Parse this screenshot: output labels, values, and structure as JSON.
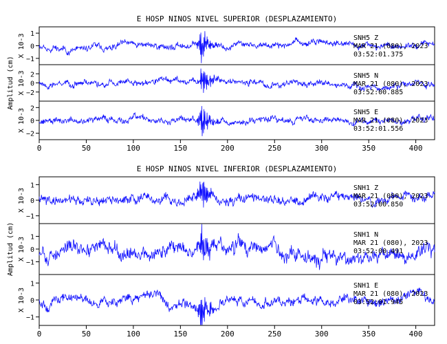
{
  "chart_data": [
    {
      "type": "line",
      "title": "E HOSP NINOS NIVEL SUPERIOR (DESPLAZAMIENTO)",
      "ylabel": "Amplitud (cm)",
      "yunit_label": "X 10-3",
      "xlim": [
        0,
        420
      ],
      "xticks": [
        0,
        50,
        100,
        150,
        200,
        250,
        300,
        350,
        400
      ],
      "line_color": "#1010ff",
      "traces": [
        {
          "station": "SNH5",
          "component": "Z",
          "date": "MAR 21 (080), 2023",
          "time": "03:52:01.375",
          "ylim": [
            -1.5,
            1.5
          ],
          "yticks": [
            -1,
            0,
            1
          ],
          "event_x": 172,
          "event_amp": 1.6,
          "noise_amp": 0.45,
          "seed": 11
        },
        {
          "station": "SNH5",
          "component": "N",
          "date": "MAR 21 (080), 2023",
          "time": "03:52:00.885",
          "ylim": [
            -4,
            4
          ],
          "yticks": [
            -2,
            0,
            2
          ],
          "event_x": 173,
          "event_amp": 3.4,
          "noise_amp": 0.45,
          "seed": 23
        },
        {
          "station": "SNH5",
          "component": "E",
          "date": "MAR 21 (080), 2023",
          "time": "03:52:01.556",
          "ylim": [
            -3,
            3
          ],
          "yticks": [
            -2,
            0,
            2
          ],
          "event_x": 173,
          "event_amp": 2.9,
          "noise_amp": 0.45,
          "seed": 37
        }
      ]
    },
    {
      "type": "line",
      "title": "E HOSP NINOS NIVEL INFERIOR (DESPLAZAMIENTO)",
      "ylabel": "Amplitud (cm)",
      "yunit_label": "X 10-3",
      "xlim": [
        0,
        420
      ],
      "xticks": [
        0,
        50,
        100,
        150,
        200,
        250,
        300,
        350,
        400
      ],
      "line_color": "#1010ff",
      "traces": [
        {
          "station": "SNH1",
          "component": "Z",
          "date": "MAR 21 (080), 2023",
          "time": "03:52:00.850",
          "ylim": [
            -1.5,
            1.5
          ],
          "yticks": [
            -1,
            0,
            1
          ],
          "event_x": 172,
          "event_amp": 1.1,
          "noise_amp": 0.55,
          "seed": 41
        },
        {
          "station": "SNH1",
          "component": "N",
          "date": "MAR 21 (080), 2023",
          "time": "03:52:00.491",
          "ylim": [
            -2,
            2
          ],
          "yticks": [
            -1,
            0,
            1
          ],
          "event_x": 173,
          "event_amp": 1.7,
          "noise_amp": 0.75,
          "seed": 53
        },
        {
          "station": "SNH1",
          "component": "E",
          "date": "MAR 21 (080), 2023",
          "time": "03:52:01.945",
          "ylim": [
            -1.5,
            1.5
          ],
          "yticks": [
            -1,
            0,
            1
          ],
          "event_x": 172,
          "event_amp": 1.2,
          "noise_amp": 0.5,
          "seed": 67
        }
      ]
    }
  ]
}
